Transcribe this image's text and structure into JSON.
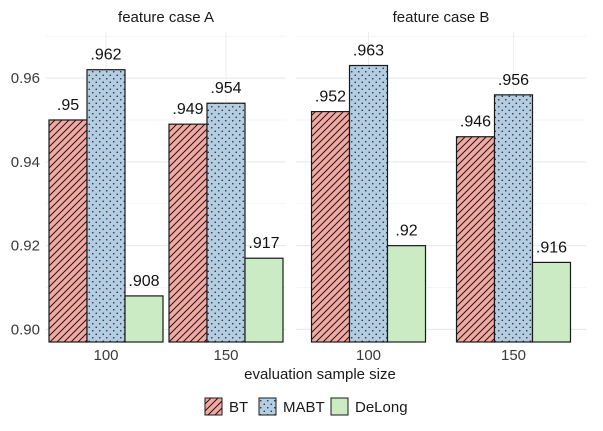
{
  "chart_data": {
    "type": "bar",
    "xlabel": "evaluation sample size",
    "ylabel": "",
    "ylim": [
      0.897,
      0.971
    ],
    "y_ticks": [
      0.9,
      0.92,
      0.94,
      0.96
    ],
    "y_tick_labels": [
      "0.90",
      "0.92",
      "0.94",
      "0.96"
    ],
    "grid": true,
    "legend_position": "bottom",
    "legend": [
      {
        "name": "BT",
        "color": "#f4a8a2",
        "pattern": "stripes"
      },
      {
        "name": "MABT",
        "color": "#b3cde3",
        "pattern": "dots"
      },
      {
        "name": "DeLong",
        "color": "#cbebc4",
        "pattern": "none"
      }
    ],
    "facets": [
      {
        "title": "feature case A",
        "categories": [
          "100",
          "150"
        ],
        "series": [
          {
            "name": "BT",
            "values": [
              0.95,
              0.949
            ],
            "labels": [
              ".95",
              ".949"
            ]
          },
          {
            "name": "MABT",
            "values": [
              0.962,
              0.954
            ],
            "labels": [
              ".962",
              ".954"
            ]
          },
          {
            "name": "DeLong",
            "values": [
              0.908,
              0.917
            ],
            "labels": [
              ".908",
              ".917"
            ]
          }
        ]
      },
      {
        "title": "feature case B",
        "categories": [
          "100",
          "150"
        ],
        "series": [
          {
            "name": "BT",
            "values": [
              0.952,
              0.946
            ],
            "labels": [
              ".952",
              ".946"
            ]
          },
          {
            "name": "MABT",
            "values": [
              0.963,
              0.956
            ],
            "labels": [
              ".963",
              ".956"
            ]
          },
          {
            "name": "DeLong",
            "values": [
              0.92,
              0.916
            ],
            "labels": [
              ".92",
              ".916"
            ]
          }
        ]
      }
    ]
  }
}
